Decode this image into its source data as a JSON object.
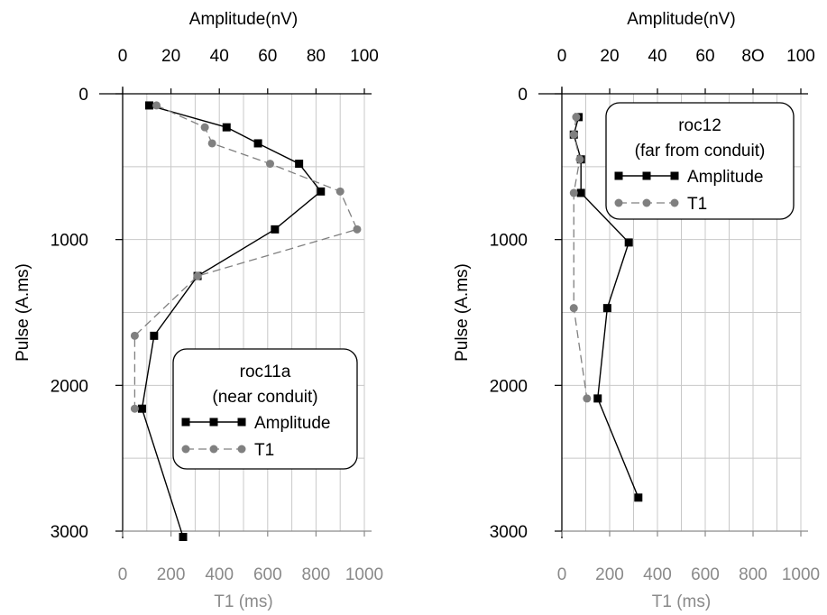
{
  "chart_data": [
    {
      "type": "line",
      "title": "",
      "xlabel_top": "Amplitude(nV)",
      "xlabel_bottom": "T1 (ms)",
      "ylabel": "Pulse (A.ms)",
      "amplitude_lim": [
        0,
        100
      ],
      "t1_lim": [
        0,
        1000
      ],
      "ylim": [
        0,
        3000
      ],
      "y_inverted": true,
      "grid": true,
      "amplitude_ticks": [
        "0",
        "20",
        "40",
        "60",
        "80",
        "100"
      ],
      "t1_ticks": [
        "0",
        "200",
        "400",
        "600",
        "800",
        "1000"
      ],
      "y_ticks": [
        "0",
        "1000",
        "2000",
        "3000"
      ],
      "legend": {
        "position": "bottom-right",
        "title_line1": "roc11a",
        "title_line2": "(near conduit)",
        "entries": [
          "Amplitude",
          "T1"
        ]
      },
      "series": [
        {
          "name": "Amplitude",
          "axis": "top",
          "color": "#000000",
          "marker": "square",
          "line": "solid",
          "points": [
            {
              "x": 11,
              "y": 80
            },
            {
              "x": 43,
              "y": 230
            },
            {
              "x": 56,
              "y": 340
            },
            {
              "x": 73,
              "y": 480
            },
            {
              "x": 82,
              "y": 670
            },
            {
              "x": 63,
              "y": 930
            },
            {
              "x": 31,
              "y": 1250
            },
            {
              "x": 13,
              "y": 1660
            },
            {
              "x": 8,
              "y": 2160
            },
            {
              "x": 25,
              "y": 3040
            }
          ]
        },
        {
          "name": "T1",
          "axis": "bottom",
          "color": "#808080",
          "marker": "circle",
          "line": "dashed",
          "points": [
            {
              "x": 140,
              "y": 80
            },
            {
              "x": 340,
              "y": 230
            },
            {
              "x": 370,
              "y": 340
            },
            {
              "x": 610,
              "y": 480
            },
            {
              "x": 900,
              "y": 670
            },
            {
              "x": 970,
              "y": 930
            },
            {
              "x": 310,
              "y": 1250
            },
            {
              "x": 50,
              "y": 1660
            },
            {
              "x": 50,
              "y": 2160
            }
          ]
        }
      ]
    },
    {
      "type": "line",
      "title": "",
      "xlabel_top": "Amplitude(nV)",
      "xlabel_bottom": "T1 (ms)",
      "ylabel": "Pulse (A.ms)",
      "amplitude_lim": [
        0,
        100
      ],
      "t1_lim": [
        0,
        1000
      ],
      "ylim": [
        0,
        3000
      ],
      "y_inverted": true,
      "grid": true,
      "amplitude_ticks": [
        "0",
        "20",
        "40",
        "60",
        "8O",
        "100"
      ],
      "t1_ticks": [
        "0",
        "200",
        "400",
        "600",
        "800",
        "1000"
      ],
      "y_ticks": [
        "0",
        "1000",
        "2000",
        "3000"
      ],
      "legend": {
        "position": "top-right",
        "title_line1": "roc12",
        "title_line2": "(far from conduit)",
        "entries": [
          "Amplitude",
          "T1"
        ]
      },
      "series": [
        {
          "name": "Amplitude",
          "axis": "top",
          "color": "#000000",
          "marker": "square",
          "line": "solid",
          "points": [
            {
              "x": 7,
              "y": 160
            },
            {
              "x": 5,
              "y": 280
            },
            {
              "x": 8,
              "y": 450
            },
            {
              "x": 8,
              "y": 680
            },
            {
              "x": 28,
              "y": 1020
            },
            {
              "x": 19,
              "y": 1470
            },
            {
              "x": 15,
              "y": 2090
            },
            {
              "x": 32,
              "y": 2770
            }
          ]
        },
        {
          "name": "T1",
          "axis": "bottom",
          "color": "#808080",
          "marker": "circle",
          "line": "dashed",
          "points": [
            {
              "x": 60,
              "y": 160
            },
            {
              "x": 50,
              "y": 280
            },
            {
              "x": 75,
              "y": 450
            },
            {
              "x": 50,
              "y": 680
            },
            {
              "x": 50,
              "y": 1470
            },
            {
              "x": 105,
              "y": 2090
            }
          ]
        }
      ]
    }
  ]
}
